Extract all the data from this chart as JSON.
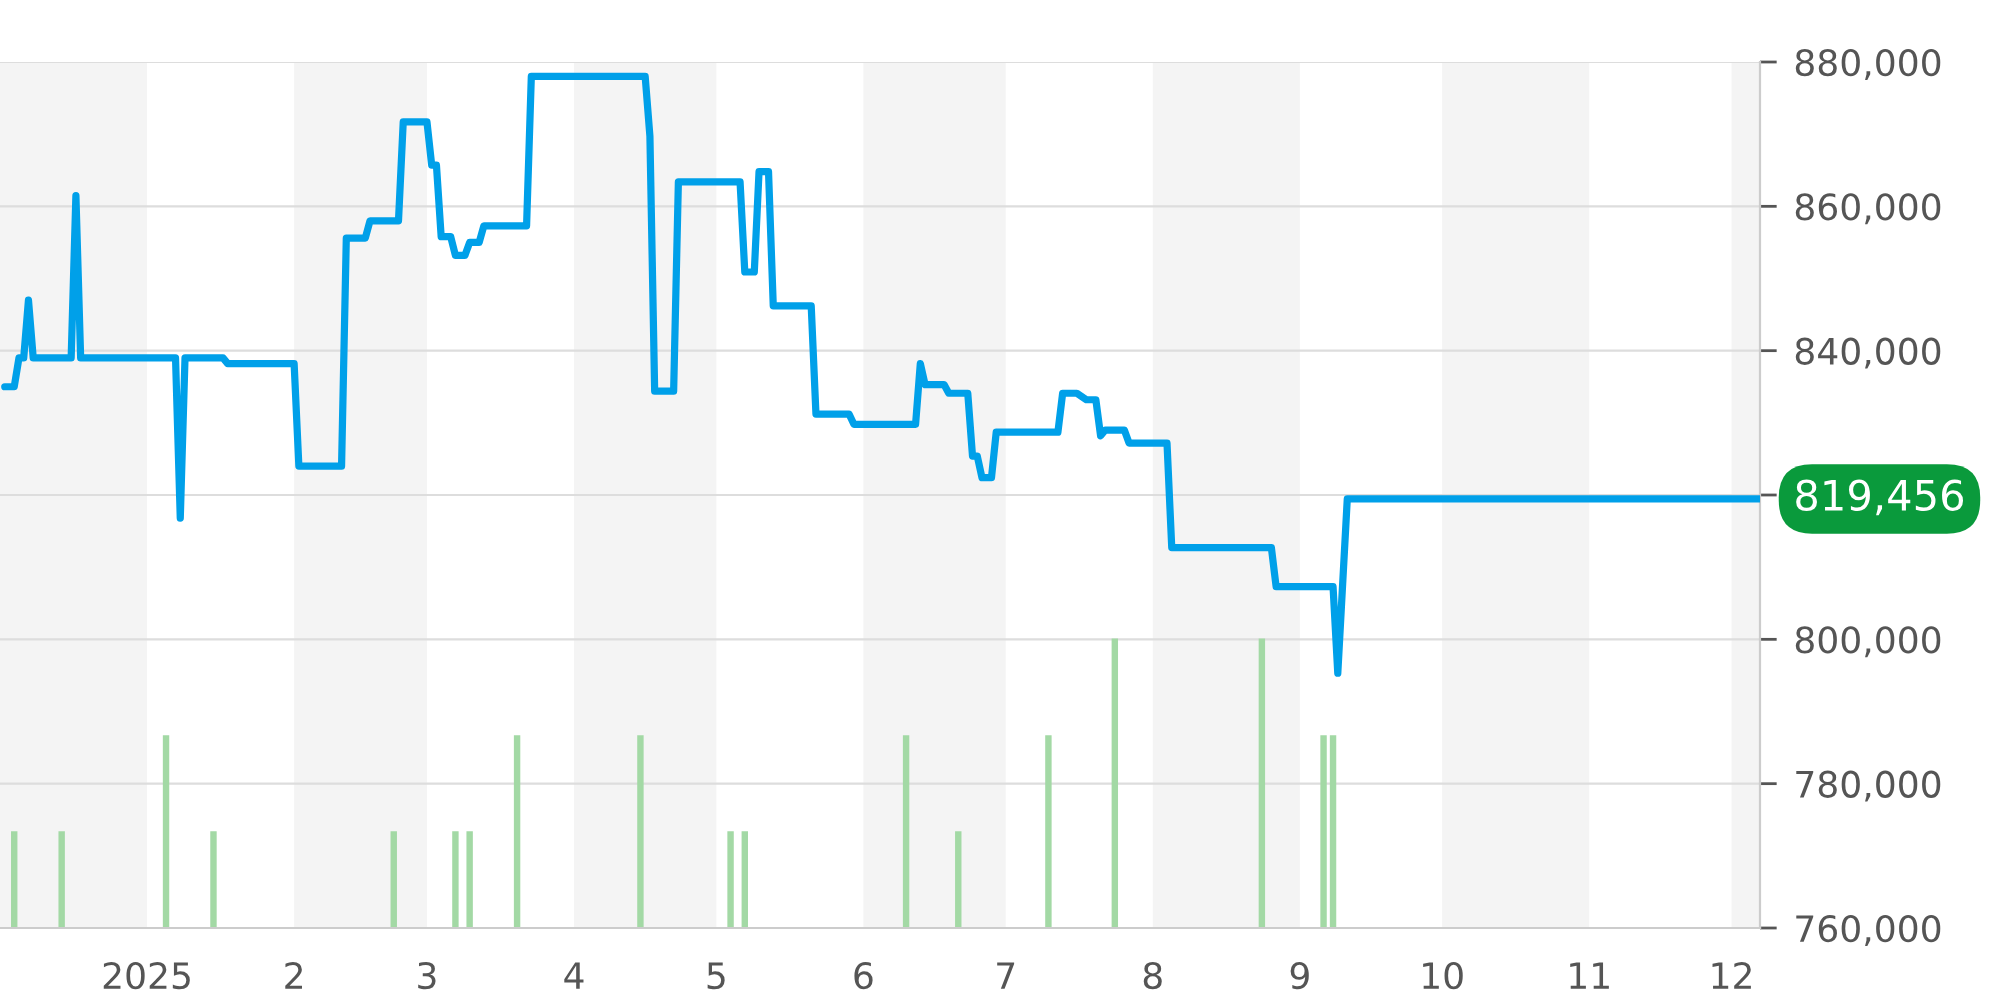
{
  "chart_data": {
    "type": "line",
    "xlim": [
      "2024-12-01",
      "2025-12-07"
    ],
    "xticks": [
      {
        "value": "2025-01-01",
        "label": "2025"
      },
      {
        "value": "2025-02-01",
        "label": "2"
      },
      {
        "value": "2025-03-01",
        "label": "3"
      },
      {
        "value": "2025-04-01",
        "label": "4"
      },
      {
        "value": "2025-05-01",
        "label": "5"
      },
      {
        "value": "2025-06-01",
        "label": "6"
      },
      {
        "value": "2025-07-01",
        "label": "7"
      },
      {
        "value": "2025-08-01",
        "label": "8"
      },
      {
        "value": "2025-09-01",
        "label": "9"
      },
      {
        "value": "2025-10-01",
        "label": "10"
      },
      {
        "value": "2025-11-01",
        "label": "11"
      },
      {
        "value": "2025-12-01",
        "label": "12"
      }
    ],
    "ylim": [
      760000,
      880000
    ],
    "yticks": [
      {
        "value": 760000,
        "label": "760,000"
      },
      {
        "value": 780000,
        "label": "780,000"
      },
      {
        "value": 800000,
        "label": "800,000"
      },
      {
        "value": 820000,
        "label": null
      },
      {
        "value": 840000,
        "label": "840,000"
      },
      {
        "value": 860000,
        "label": "860,000"
      },
      {
        "value": 880000,
        "label": "880,000"
      }
    ],
    "grid": "y",
    "legend": false,
    "bands": [
      {
        "axis": "x",
        "from": "2024-12-01",
        "to": "2025-01-01",
        "color": "#f4f4f4"
      },
      {
        "axis": "x",
        "from": "2025-02-01",
        "to": "2025-03-01",
        "color": "#f4f4f4"
      },
      {
        "axis": "x",
        "from": "2025-04-01",
        "to": "2025-05-01",
        "color": "#f4f4f4"
      },
      {
        "axis": "x",
        "from": "2025-06-01",
        "to": "2025-07-01",
        "color": "#f4f4f4"
      },
      {
        "axis": "x",
        "from": "2025-08-01",
        "to": "2025-09-01",
        "color": "#f4f4f4"
      },
      {
        "axis": "x",
        "from": "2025-10-01",
        "to": "2025-11-01",
        "color": "#f4f4f4"
      },
      {
        "axis": "x",
        "from": "2025-12-01",
        "to": "2025-12-07",
        "color": "#f4f4f4"
      }
    ],
    "series": [
      {
        "type": "bar",
        "color": "#a3d9a5",
        "base": [
          760000,
          760000,
          760000,
          760000,
          760000,
          760000,
          760000,
          760000,
          760000,
          760000,
          760000,
          760000,
          760000,
          760000,
          760000,
          760000,
          760000,
          760000
        ],
        "x": [
          "2024-12-04",
          "2024-12-14",
          "2025-01-05",
          "2025-01-15",
          "2025-02-22",
          "2025-03-07",
          "2025-03-10",
          "2025-03-20",
          "2025-04-15",
          "2025-05-04",
          "2025-05-07",
          "2025-06-10",
          "2025-06-21",
          "2025-07-10",
          "2025-07-24",
          "2025-08-24",
          "2025-09-06",
          "2025-09-08"
        ],
        "values": [
          13300,
          13300,
          26600,
          13300,
          13300,
          13300,
          13300,
          26600,
          26600,
          13300,
          13300,
          26600,
          13300,
          26600,
          40000,
          40000,
          26600,
          26600
        ]
      },
      {
        "color": "#00a0e9",
        "line_style": "solid",
        "marker": "none",
        "x": [
          "2024-12-02",
          "2024-12-04",
          "2024-12-05",
          "2024-12-06",
          "2024-12-07",
          "2024-12-08",
          "2024-12-16",
          "2024-12-17",
          "2024-12-18",
          "2025-01-07",
          "2025-01-08",
          "2025-01-09",
          "2025-01-17",
          "2025-01-18",
          "2025-02-01",
          "2025-02-02",
          "2025-02-11",
          "2025-02-12",
          "2025-02-16",
          "2025-02-17",
          "2025-02-23",
          "2025-02-24",
          "2025-03-01",
          "2025-03-02",
          "2025-03-03",
          "2025-03-04",
          "2025-03-06",
          "2025-03-07",
          "2025-03-09",
          "2025-03-10",
          "2025-03-12",
          "2025-03-13",
          "2025-03-22",
          "2025-03-23",
          "2025-04-16",
          "2025-04-17",
          "2025-04-18",
          "2025-04-22",
          "2025-04-23",
          "2025-05-06",
          "2025-05-07",
          "2025-05-09",
          "2025-05-10",
          "2025-05-12",
          "2025-05-13",
          "2025-05-21",
          "2025-05-22",
          "2025-05-29",
          "2025-05-30",
          "2025-06-12",
          "2025-06-13",
          "2025-06-14",
          "2025-06-18",
          "2025-06-19",
          "2025-06-23",
          "2025-06-24",
          "2025-06-25",
          "2025-06-26",
          "2025-06-28",
          "2025-06-29",
          "2025-07-12",
          "2025-07-13",
          "2025-07-16",
          "2025-07-18",
          "2025-07-20",
          "2025-07-21",
          "2025-07-22",
          "2025-07-26",
          "2025-07-27",
          "2025-08-04",
          "2025-08-05",
          "2025-08-26",
          "2025-08-27",
          "2025-09-08",
          "2025-09-09",
          "2025-09-11",
          "2025-12-07"
        ],
        "values": [
          835000,
          835000,
          839000,
          839000,
          847000,
          839000,
          839000,
          861500,
          839000,
          839000,
          816800,
          839000,
          839000,
          838200,
          838200,
          824000,
          824000,
          855600,
          855600,
          858000,
          858000,
          871700,
          871700,
          865700,
          865700,
          855800,
          855800,
          853200,
          853200,
          855000,
          855000,
          857300,
          857300,
          878000,
          878000,
          869700,
          834400,
          834400,
          863400,
          863400,
          850900,
          850900,
          864800,
          864800,
          846200,
          846200,
          831200,
          831200,
          829800,
          829800,
          838200,
          835300,
          835300,
          834100,
          834100,
          825400,
          825400,
          822400,
          822400,
          828700,
          828700,
          834100,
          834100,
          833200,
          833200,
          828200,
          829000,
          829000,
          827200,
          827200,
          812700,
          812700,
          807300,
          807300,
          795300,
          819456,
          819456
        ]
      }
    ],
    "annotations": [
      {
        "text": "819,456",
        "x": "2025-12-07",
        "y": 819456
      }
    ]
  }
}
